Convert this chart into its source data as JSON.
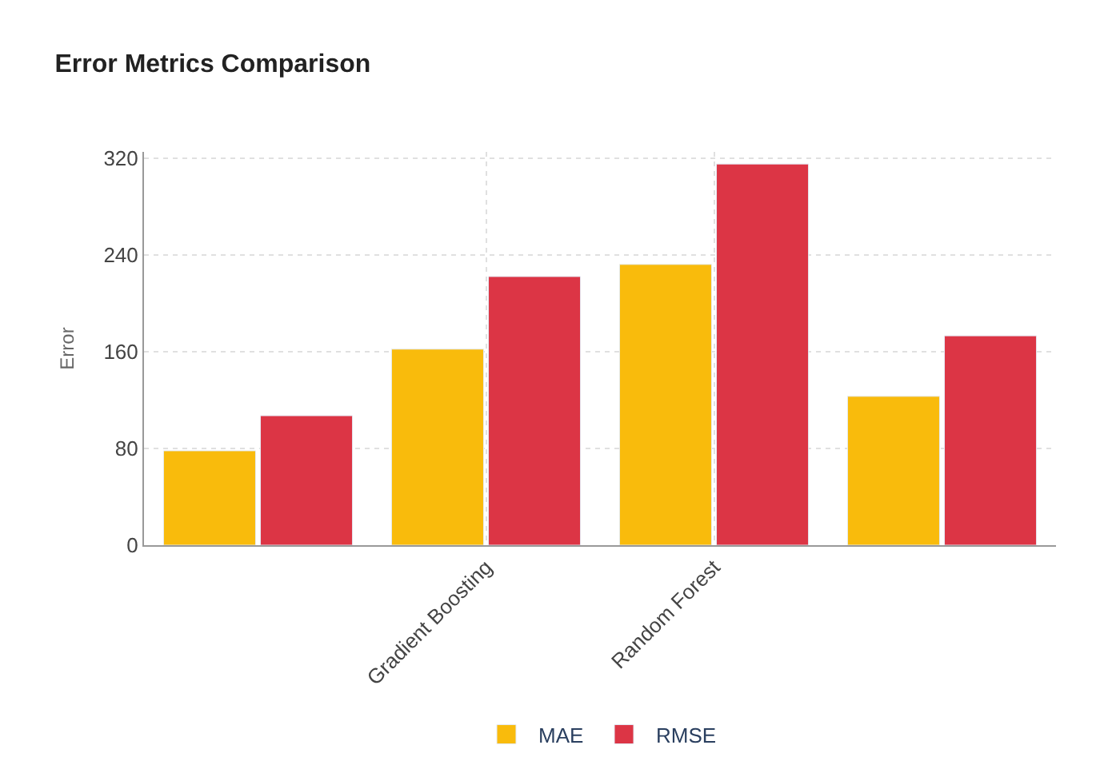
{
  "chart_data": {
    "type": "bar",
    "title": "Error Metrics Comparison",
    "ylabel": "Error",
    "categories": [
      null,
      "Gradient Boosting",
      "Random Forest",
      null
    ],
    "series": [
      {
        "name": "MAE",
        "color": "#f9bb0c",
        "values": [
          78,
          162,
          232,
          123
        ]
      },
      {
        "name": "RMSE",
        "color": "#dc3545",
        "values": [
          107,
          222,
          315,
          173
        ]
      }
    ],
    "ylim": [
      0,
      325
    ],
    "yticks": [
      0,
      80,
      160,
      240,
      320
    ],
    "grid": true,
    "legend": "bottom"
  }
}
